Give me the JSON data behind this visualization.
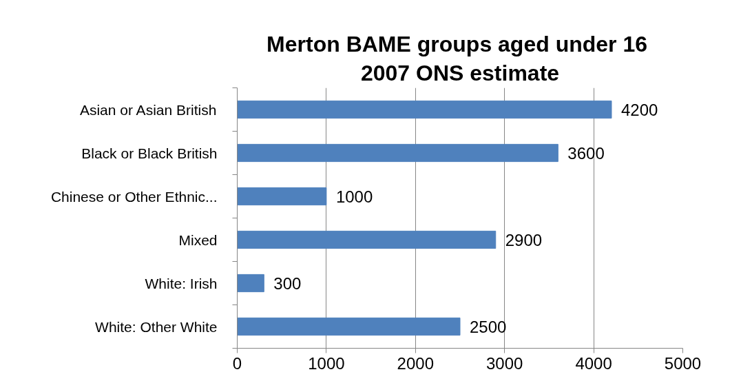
{
  "chart_data": {
    "type": "bar",
    "orientation": "horizontal",
    "title": "Merton  BAME groups aged under 16",
    "subtitle": "2007 ONS estimate",
    "categories": [
      "Asian or Asian British",
      "Black or Black British",
      "Chinese or Other Ethnic...",
      "Mixed",
      "White: Irish",
      "White: Other White"
    ],
    "values": [
      4200,
      3600,
      1000,
      2900,
      300,
      2500
    ],
    "color": "#4f81bd",
    "xlim": [
      0,
      5000
    ],
    "xticks": [
      0,
      1000,
      2000,
      3000,
      4000,
      5000
    ],
    "grid": "x",
    "data_labels": true
  }
}
